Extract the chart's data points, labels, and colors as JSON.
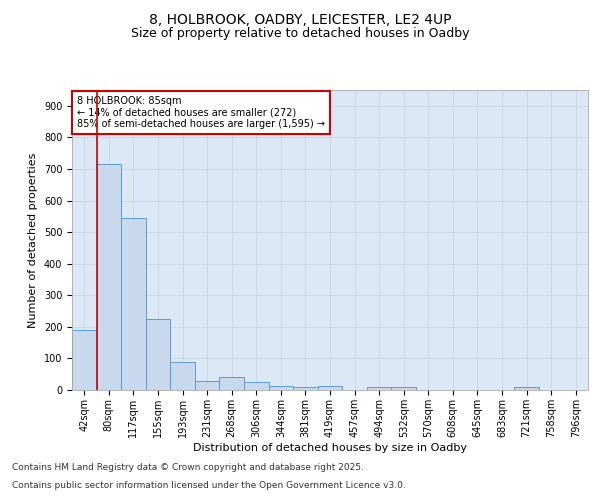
{
  "title_line1": "8, HOLBROOK, OADBY, LEICESTER, LE2 4UP",
  "title_line2": "Size of property relative to detached houses in Oadby",
  "xlabel": "Distribution of detached houses by size in Oadby",
  "ylabel": "Number of detached properties",
  "bin_labels": [
    "42sqm",
    "80sqm",
    "117sqm",
    "155sqm",
    "193sqm",
    "231sqm",
    "268sqm",
    "306sqm",
    "344sqm",
    "381sqm",
    "419sqm",
    "457sqm",
    "494sqm",
    "532sqm",
    "570sqm",
    "608sqm",
    "645sqm",
    "683sqm",
    "721sqm",
    "758sqm",
    "796sqm"
  ],
  "bar_heights": [
    190,
    715,
    545,
    225,
    90,
    30,
    40,
    25,
    12,
    10,
    12,
    0,
    8,
    8,
    0,
    0,
    0,
    0,
    10,
    0,
    0
  ],
  "bar_color": "#c9d9ed",
  "bar_edge_color": "#5b9bd5",
  "vline_x_index": 1,
  "vline_color": "#cc0000",
  "annotation_text": "8 HOLBROOK: 85sqm\n← 14% of detached houses are smaller (272)\n85% of semi-detached houses are larger (1,595) →",
  "annotation_box_color": "#cc0000",
  "ylim": [
    0,
    950
  ],
  "yticks": [
    0,
    100,
    200,
    300,
    400,
    500,
    600,
    700,
    800,
    900
  ],
  "grid_color": "#c8d4e3",
  "background_color": "#dce8f5",
  "footer_line1": "Contains HM Land Registry data © Crown copyright and database right 2025.",
  "footer_line2": "Contains public sector information licensed under the Open Government Licence v3.0.",
  "title_fontsize": 10,
  "subtitle_fontsize": 9,
  "axis_label_fontsize": 8,
  "tick_fontsize": 7,
  "annotation_fontsize": 7,
  "footer_fontsize": 6.5
}
